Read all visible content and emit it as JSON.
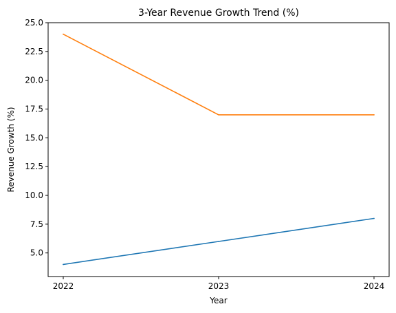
{
  "chart_data": {
    "type": "line",
    "title": "3-Year Revenue Growth Trend (%)",
    "xlabel": "Year",
    "ylabel": "Revenue Growth (%)",
    "x": [
      "2022",
      "2023",
      "2024"
    ],
    "ylim": [
      2.95,
      25.0
    ],
    "yticks": [
      "5.0",
      "7.5",
      "10.0",
      "12.5",
      "15.0",
      "17.5",
      "20.0",
      "22.5",
      "25.0"
    ],
    "grid": false,
    "legend": "none",
    "series": [
      {
        "values": [
          4.0,
          6.0,
          8.0
        ],
        "color": "#1f77b4"
      },
      {
        "values": [
          24.0,
          17.0,
          17.0
        ],
        "color": "#ff7f0e"
      }
    ]
  }
}
